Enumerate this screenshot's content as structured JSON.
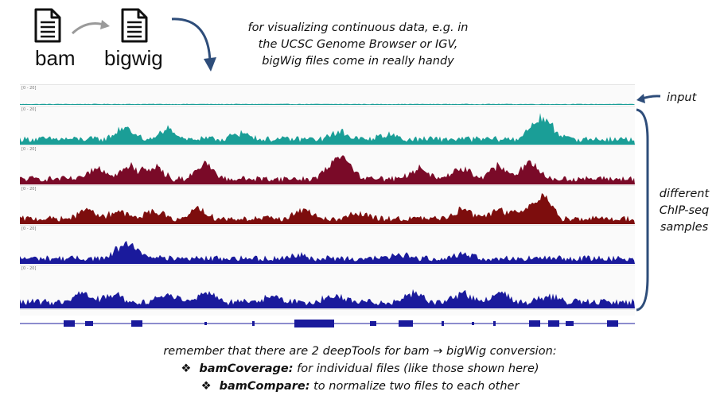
{
  "header": {
    "bam_label": "bam",
    "bigwig_label": "bigwig",
    "note_lines": [
      "for visualizing continuous data, e.g. in",
      "the UCSC Genome Browser or IGV,",
      "bigWig files come in really handy"
    ]
  },
  "icons": {
    "bam_file": "document-icon",
    "bigwig_file": "document-icon",
    "conversion_arrow": "curved-arrow-icon",
    "pointer_arrow": "curved-arrow-icon"
  },
  "tracks": [
    {
      "range": "[0 - 20]",
      "color": "#1a9e97",
      "kind": "input"
    },
    {
      "range": "[0 - 20]",
      "color": "#1a9e97",
      "kind": "chip"
    },
    {
      "range": "[0 - 20]",
      "color": "#7a0a28",
      "kind": "chip"
    },
    {
      "range": "[0 - 20]",
      "color": "#7d0d0d",
      "kind": "chip"
    },
    {
      "range": "[0 - 20]",
      "color": "#1a1a9c",
      "kind": "chip"
    },
    {
      "range": "[0 - 20]",
      "color": "#1a1a9c",
      "kind": "chip"
    }
  ],
  "gene_track_color": "#1a1a9c",
  "labels": {
    "input": "input",
    "samples_lines": [
      "different",
      "ChIP-seq",
      "samples"
    ]
  },
  "footer": {
    "line1": "remember that there are 2 deepTools for bam → bigWig conversion:",
    "bullet_glyph": "❖",
    "tools": [
      {
        "name": "bamCoverage:",
        "desc": " for individual files (like those shown here)"
      },
      {
        "name": "bamCompare:",
        "desc": " to normalize two files to each other"
      }
    ]
  }
}
